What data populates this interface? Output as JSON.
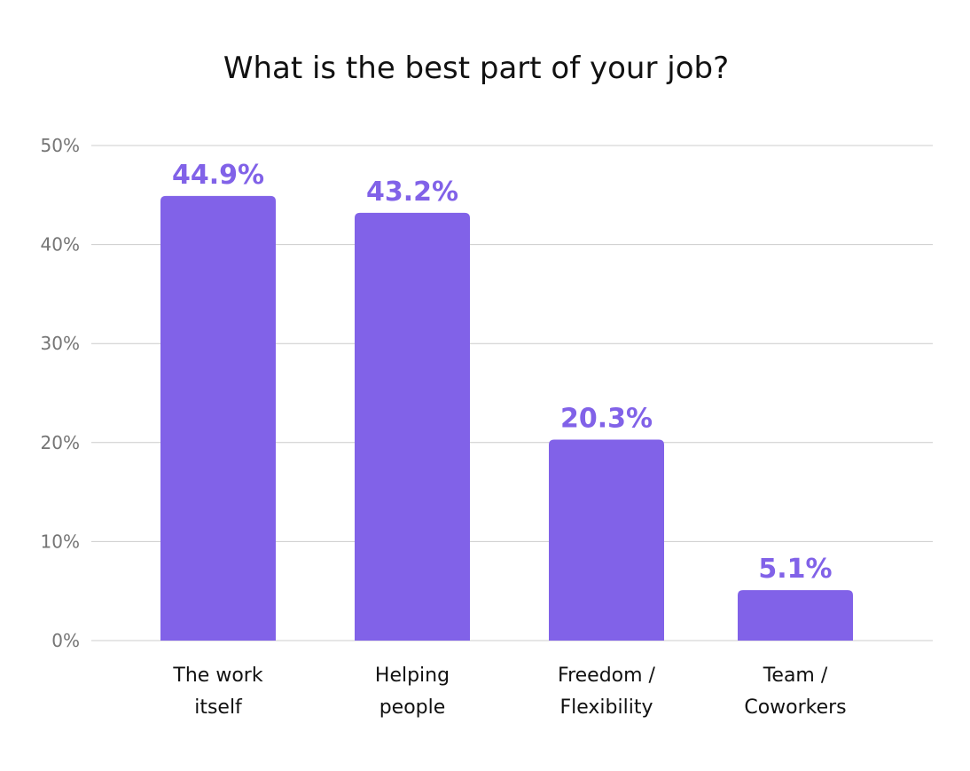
{
  "chart_data": {
    "type": "bar",
    "title": "What is the best part of your job?",
    "categories": [
      [
        "The work",
        "itself"
      ],
      [
        "Helping",
        "people"
      ],
      [
        "Freedom /",
        "Flexibility"
      ],
      [
        "Team /",
        "Coworkers"
      ]
    ],
    "values": [
      44.9,
      43.2,
      20.3,
      5.1
    ],
    "data_labels": [
      "44.9%",
      "43.2%",
      "20.3%",
      "5.1%"
    ],
    "ylim": [
      0,
      50
    ],
    "yticks": [
      0,
      10,
      20,
      30,
      40,
      50
    ],
    "ytick_labels": [
      "0%",
      "10%",
      "20%",
      "30%",
      "40%",
      "50%"
    ],
    "xlabel": "",
    "ylabel": "",
    "grid": true,
    "legend": "none",
    "colors": {
      "bar": "#8162E8",
      "data_label": "#8162E8",
      "grid": "#CCCCCC",
      "tick_label": "#757575",
      "title": "#111111"
    }
  }
}
